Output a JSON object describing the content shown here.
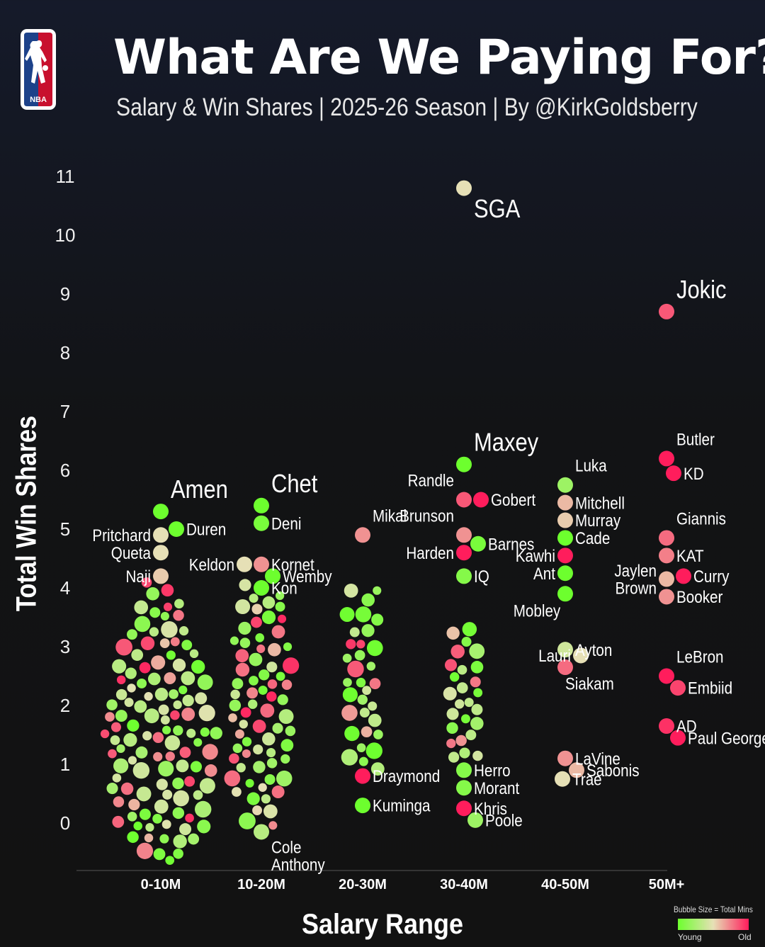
{
  "header": {
    "logo_text": "NBA",
    "title": "What Are We Paying For?",
    "subtitle": "Salary & Win Shares | 2025-26 Season | By @KirkGoldsberry"
  },
  "legend": {
    "title": "Bubble Size = Total Mins",
    "young": "Young",
    "old": "Old",
    "colors": [
      "#6dff2e",
      "#e6e0b6",
      "#ff1d5c"
    ]
  },
  "chart_data": {
    "type": "scatter",
    "subtype": "beeswarm",
    "title": "What Are We Paying For?",
    "xlabel": "Salary Range",
    "ylabel": "Total Win Shares",
    "categories": [
      "0-10M",
      "10-20M",
      "20-30M",
      "30-40M",
      "40-50M",
      "50M+"
    ],
    "y_ticks": [
      11,
      10,
      9,
      8,
      7,
      6,
      5,
      4,
      3,
      2,
      1,
      0
    ],
    "ylim": [
      -0.7,
      11.3
    ],
    "color_scale": {
      "low": "Young",
      "high": "Old"
    },
    "size_encoding": "Total Mins",
    "labeled_players": [
      {
        "name": "Amen",
        "category": "0-10M",
        "win_shares": 5.3,
        "age": 0.0
      },
      {
        "name": "Pritchard",
        "category": "0-10M",
        "win_shares": 4.9,
        "age": 0.5
      },
      {
        "name": "Duren",
        "category": "0-10M",
        "win_shares": 5.0,
        "age": 0.0
      },
      {
        "name": "Queta",
        "category": "0-10M",
        "win_shares": 4.6,
        "age": 0.5
      },
      {
        "name": "Naji",
        "category": "0-10M",
        "win_shares": 4.2,
        "age": 0.55
      },
      {
        "name": "Chet",
        "category": "10-20M",
        "win_shares": 5.4,
        "age": 0.0
      },
      {
        "name": "Deni",
        "category": "10-20M",
        "win_shares": 5.1,
        "age": 0.05
      },
      {
        "name": "Kornet",
        "category": "10-20M",
        "win_shares": 4.4,
        "age": 0.7
      },
      {
        "name": "Wemby",
        "category": "10-20M",
        "win_shares": 4.2,
        "age": 0.0
      },
      {
        "name": "Keldon",
        "category": "10-20M",
        "win_shares": 4.4,
        "age": 0.5
      },
      {
        "name": "Kon",
        "category": "10-20M",
        "win_shares": 4.0,
        "age": 0.0
      },
      {
        "name": "Cole Anthony",
        "category": "10-20M",
        "win_shares": -0.15,
        "age": 0.3
      },
      {
        "name": "Mikal",
        "category": "20-30M",
        "win_shares": 4.9,
        "age": 0.7
      },
      {
        "name": "Draymond",
        "category": "20-30M",
        "win_shares": 0.8,
        "age": 1.0
      },
      {
        "name": "Kuminga",
        "category": "20-30M",
        "win_shares": 0.3,
        "age": 0.0
      },
      {
        "name": "SGA",
        "category": "30-40M",
        "win_shares": 10.8,
        "age": 0.5
      },
      {
        "name": "Maxey",
        "category": "30-40M",
        "win_shares": 6.1,
        "age": 0.0
      },
      {
        "name": "Randle",
        "category": "30-40M",
        "win_shares": 5.5,
        "age": 0.85
      },
      {
        "name": "Gobert",
        "category": "30-40M",
        "win_shares": 5.5,
        "age": 1.0
      },
      {
        "name": "Brunson",
        "category": "30-40M",
        "win_shares": 4.9,
        "age": 0.7
      },
      {
        "name": "Barnes",
        "category": "30-40M",
        "win_shares": 4.75,
        "age": 0.05
      },
      {
        "name": "Harden",
        "category": "30-40M",
        "win_shares": 4.6,
        "age": 1.0
      },
      {
        "name": "IQ",
        "category": "30-40M",
        "win_shares": 4.2,
        "age": 0.1
      },
      {
        "name": "Herro",
        "category": "30-40M",
        "win_shares": 0.9,
        "age": 0.1
      },
      {
        "name": "Morant",
        "category": "30-40M",
        "win_shares": 0.6,
        "age": 0.1
      },
      {
        "name": "Khris",
        "category": "30-40M",
        "win_shares": 0.25,
        "age": 1.0
      },
      {
        "name": "Poole",
        "category": "30-40M",
        "win_shares": 0.05,
        "age": 0.2
      },
      {
        "name": "Luka",
        "category": "40-50M",
        "win_shares": 5.75,
        "age": 0.2
      },
      {
        "name": "Mitchell",
        "category": "40-50M",
        "win_shares": 5.45,
        "age": 0.6
      },
      {
        "name": "Murray",
        "category": "40-50M",
        "win_shares": 5.15,
        "age": 0.55
      },
      {
        "name": "Cade",
        "category": "40-50M",
        "win_shares": 4.85,
        "age": 0.0
      },
      {
        "name": "Kawhi",
        "category": "40-50M",
        "win_shares": 4.55,
        "age": 1.0
      },
      {
        "name": "Ant",
        "category": "40-50M",
        "win_shares": 4.25,
        "age": 0.0
      },
      {
        "name": "Mobley",
        "category": "40-50M",
        "win_shares": 3.9,
        "age": 0.0
      },
      {
        "name": "Ayton",
        "category": "40-50M",
        "win_shares": 2.95,
        "age": 0.4
      },
      {
        "name": "Lauri",
        "category": "40-50M",
        "win_shares": 2.85,
        "age": 0.5
      },
      {
        "name": "Siakam",
        "category": "40-50M",
        "win_shares": 2.65,
        "age": 0.8
      },
      {
        "name": "LaVine",
        "category": "40-50M",
        "win_shares": 1.1,
        "age": 0.7
      },
      {
        "name": "Sabonis",
        "category": "40-50M",
        "win_shares": 0.9,
        "age": 0.6
      },
      {
        "name": "Trae",
        "category": "40-50M",
        "win_shares": 0.75,
        "age": 0.5
      },
      {
        "name": "Jokic",
        "category": "50M+",
        "win_shares": 8.7,
        "age": 0.85
      },
      {
        "name": "Butler",
        "category": "50M+",
        "win_shares": 6.2,
        "age": 1.0
      },
      {
        "name": "KD",
        "category": "50M+",
        "win_shares": 5.95,
        "age": 1.0
      },
      {
        "name": "Giannis",
        "category": "50M+",
        "win_shares": 4.85,
        "age": 0.8
      },
      {
        "name": "KAT",
        "category": "50M+",
        "win_shares": 4.55,
        "age": 0.75
      },
      {
        "name": "Jaylen Brown",
        "category": "50M+",
        "win_shares": 4.15,
        "age": 0.6
      },
      {
        "name": "Curry",
        "category": "50M+",
        "win_shares": 4.2,
        "age": 1.0
      },
      {
        "name": "Booker",
        "category": "50M+",
        "win_shares": 3.85,
        "age": 0.7
      },
      {
        "name": "LeBron",
        "category": "50M+",
        "win_shares": 2.5,
        "age": 1.0
      },
      {
        "name": "Embiid",
        "category": "50M+",
        "win_shares": 2.3,
        "age": 0.9
      },
      {
        "name": "AD",
        "category": "50M+",
        "win_shares": 1.65,
        "age": 0.95
      },
      {
        "name": "Paul George",
        "category": "50M+",
        "win_shares": 1.45,
        "age": 1.0
      }
    ],
    "unlabeled_ws_ranges": {
      "0-10M": [
        -0.65,
        4.1
      ],
      "10-20M": [
        -0.1,
        4.1
      ],
      "20-30M": [
        0.9,
        4.0
      ],
      "30-40M": [
        1.1,
        3.3
      ]
    }
  }
}
